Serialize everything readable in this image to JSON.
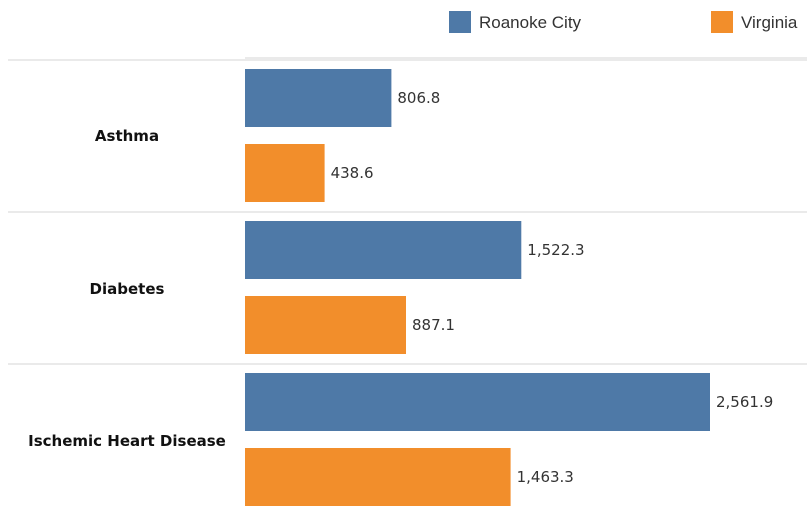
{
  "chart_data": {
    "type": "bar",
    "orientation": "horizontal",
    "categories": [
      "Asthma",
      "Diabetes",
      "Ischemic Heart Disease"
    ],
    "series": [
      {
        "name": "Roanoke City",
        "color": "#4e79a7",
        "values": [
          806.8,
          1522.3,
          2561.9
        ],
        "labels": [
          "806.8",
          "1,522.3",
          "2,561.9"
        ]
      },
      {
        "name": "Virginia",
        "color": "#f28e2b",
        "values": [
          438.6,
          887.1,
          1463.3
        ],
        "labels": [
          "438.6",
          "887.1",
          "1,463.3"
        ]
      }
    ],
    "legend_position": "top-right",
    "grid": false
  }
}
